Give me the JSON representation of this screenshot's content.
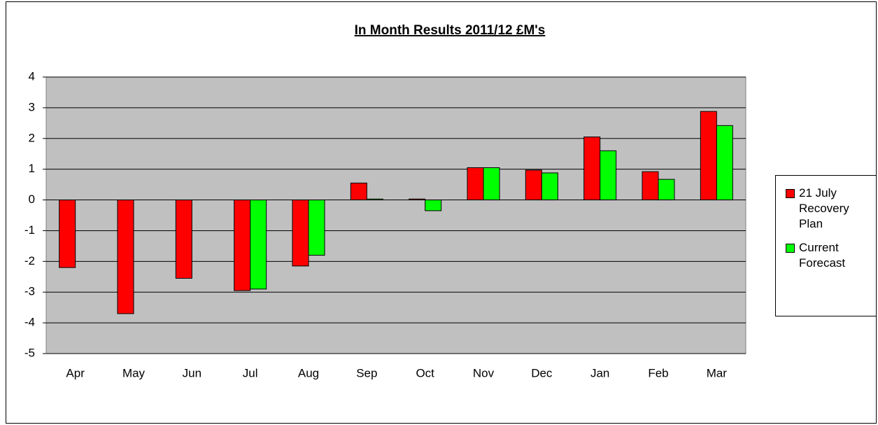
{
  "chart_data": {
    "type": "bar",
    "title": "In Month Results 2011/12 £M's",
    "categories": [
      "Apr",
      "May",
      "Jun",
      "Jul",
      "Aug",
      "Sep",
      "Oct",
      "Nov",
      "Dec",
      "Jan",
      "Feb",
      "Mar"
    ],
    "series": [
      {
        "name": "21 July Recovery Plan",
        "color": "#ff0000",
        "values": [
          -2.2,
          -3.7,
          -2.55,
          -2.95,
          -2.15,
          0.55,
          0.03,
          1.05,
          0.97,
          2.05,
          0.92,
          2.88
        ]
      },
      {
        "name": "Current Forecast",
        "color": "#00ff00",
        "values": [
          null,
          null,
          null,
          -2.9,
          -1.8,
          0.03,
          -0.35,
          1.05,
          0.88,
          1.6,
          0.67,
          2.42
        ]
      }
    ],
    "ylim": [
      -5,
      4
    ],
    "yticks": [
      -5,
      -4,
      -3,
      -2,
      -1,
      0,
      1,
      2,
      3,
      4
    ],
    "grid": true,
    "legend": "right"
  }
}
